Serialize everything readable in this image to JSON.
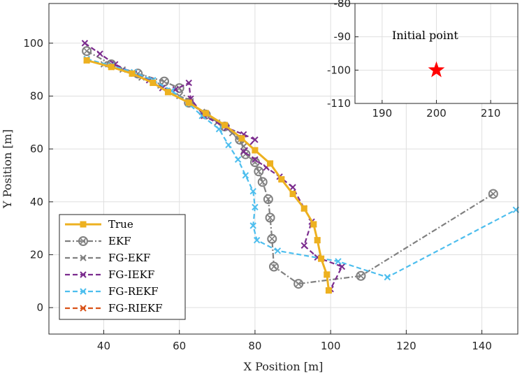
{
  "chart_data": [
    {
      "type": "line",
      "xlabel": "X Position [m]",
      "ylabel": "Y Position [m]",
      "xlim": [
        25.5,
        149.5
      ],
      "ylim": [
        -10,
        115
      ],
      "xticks": [
        40,
        60,
        80,
        100,
        120,
        140
      ],
      "yticks": [
        0,
        20,
        40,
        60,
        80,
        100
      ],
      "grid": true,
      "legend_position": "bottom-left",
      "series": [
        {
          "name": "EKF",
          "color": "#808080",
          "dash": "dashdot",
          "marker": "circle-x",
          "points": [
            [
              35.5,
              97
            ],
            [
              42,
              92
            ],
            [
              49,
              88.5
            ],
            [
              56,
              85.5
            ],
            [
              60,
              83
            ],
            [
              62.5,
              77.5
            ],
            [
              67,
              73
            ],
            [
              72,
              68.5
            ],
            [
              76,
              63.5
            ],
            [
              77.5,
              58
            ],
            [
              80,
              55
            ],
            [
              81,
              51.5
            ],
            [
              82,
              47.5
            ],
            [
              83.5,
              41
            ],
            [
              84,
              34
            ],
            [
              84.5,
              26
            ],
            [
              85,
              15.5
            ],
            [
              91.5,
              9
            ],
            [
              108,
              12
            ],
            [
              143,
              43
            ]
          ]
        },
        {
          "name": "FG-EKF",
          "color": "#808080",
          "dash": "dashed",
          "marker": "x",
          "points": [
            [
              35.5,
              94
            ],
            [
              40,
              92
            ],
            [
              45,
              90
            ],
            [
              50,
              87
            ],
            [
              55,
              84
            ],
            [
              60,
              80
            ],
            [
              63,
              78
            ],
            [
              66,
              74
            ],
            [
              70,
              70
            ],
            [
              74,
              66
            ],
            [
              77,
              61
            ]
          ]
        },
        {
          "name": "FG-IEKF",
          "color": "#7B2C8E",
          "dash": "dashed",
          "marker": "x",
          "points": [
            [
              35,
              100
            ],
            [
              39,
              96
            ],
            [
              43,
              92
            ],
            [
              48,
              88.5
            ],
            [
              52,
              86
            ],
            [
              55.5,
              83
            ],
            [
              59,
              82.5
            ],
            [
              62.5,
              85
            ],
            [
              63,
              79
            ],
            [
              66.5,
              72.5
            ],
            [
              72.5,
              68
            ],
            [
              77,
              65.5
            ],
            [
              80,
              63.5
            ],
            [
              77,
              59
            ],
            [
              80,
              56
            ],
            [
              83,
              53
            ],
            [
              86.5,
              49.5
            ],
            [
              90,
              45.5
            ],
            [
              93,
              37.5
            ],
            [
              95,
              32.5
            ],
            [
              93,
              23.5
            ],
            [
              96.5,
              19
            ],
            [
              103,
              15.5
            ],
            [
              100,
              7
            ]
          ]
        },
        {
          "name": "FG-REKF",
          "color": "#4DBEEE",
          "dash": "dashed",
          "marker": "x",
          "points": [
            [
              35.5,
              94
            ],
            [
              42,
              91.5
            ],
            [
              48,
              89
            ],
            [
              53,
              86
            ],
            [
              58,
              82
            ],
            [
              62.5,
              77
            ],
            [
              66,
              72.5
            ],
            [
              70.5,
              67.5
            ],
            [
              73,
              61.5
            ],
            [
              75.5,
              56
            ],
            [
              77.5,
              50
            ],
            [
              79.5,
              44
            ],
            [
              80,
              38
            ],
            [
              79.5,
              31
            ],
            [
              80.5,
              25.5
            ],
            [
              86,
              21.5
            ],
            [
              102,
              17.5
            ],
            [
              115,
              11.5
            ],
            [
              149,
              37
            ]
          ]
        },
        {
          "name": "FG-RIEKF",
          "color": "#D95319",
          "dash": "dashed",
          "marker": "x",
          "points": [
            [
              35.5,
              93.5
            ],
            [
              42,
              91
            ],
            [
              47.5,
              88.5
            ],
            [
              53,
              85
            ],
            [
              57,
              81.5
            ],
            [
              62.5,
              77.5
            ],
            [
              67,
              73.5
            ],
            [
              72,
              69
            ],
            [
              76.5,
              64
            ],
            [
              80,
              59.5
            ],
            [
              84,
              54.5
            ],
            [
              87,
              48.5
            ],
            [
              90,
              43
            ],
            [
              93,
              37.5
            ],
            [
              95.5,
              31.5
            ],
            [
              96.5,
              25.5
            ],
            [
              97.5,
              18.5
            ],
            [
              99,
              12.5
            ],
            [
              99.5,
              6.5
            ]
          ]
        },
        {
          "name": "True",
          "color": "#EDB120",
          "dash": "solid",
          "marker": "square",
          "points": [
            [
              35.5,
              93.5
            ],
            [
              42,
              91
            ],
            [
              47.5,
              88.5
            ],
            [
              53,
              85
            ],
            [
              57,
              81.5
            ],
            [
              62.5,
              77.5
            ],
            [
              67,
              73.5
            ],
            [
              72,
              69
            ],
            [
              76.5,
              64
            ],
            [
              80,
              59.5
            ],
            [
              84,
              54.5
            ],
            [
              87,
              48.5
            ],
            [
              90,
              43
            ],
            [
              93,
              37.5
            ],
            [
              95.5,
              31.5
            ],
            [
              96.5,
              25.5
            ],
            [
              97.5,
              18.5
            ],
            [
              99,
              12.5
            ],
            [
              99.5,
              6.5
            ]
          ]
        }
      ],
      "legend_order": [
        "True",
        "EKF",
        "FG-EKF",
        "FG-IEKF",
        "FG-REKF",
        "FG-RIEKF"
      ]
    },
    {
      "type": "scatter",
      "title": "Initial point",
      "xlim": [
        185,
        215
      ],
      "ylim": [
        -110,
        -80
      ],
      "xticks": [
        190,
        200,
        210
      ],
      "yticks": [
        -80,
        -90,
        -100,
        -110
      ],
      "grid": true,
      "points": [
        {
          "x": 200,
          "y": -100,
          "marker": "star",
          "color": "#FF0000"
        }
      ]
    }
  ]
}
